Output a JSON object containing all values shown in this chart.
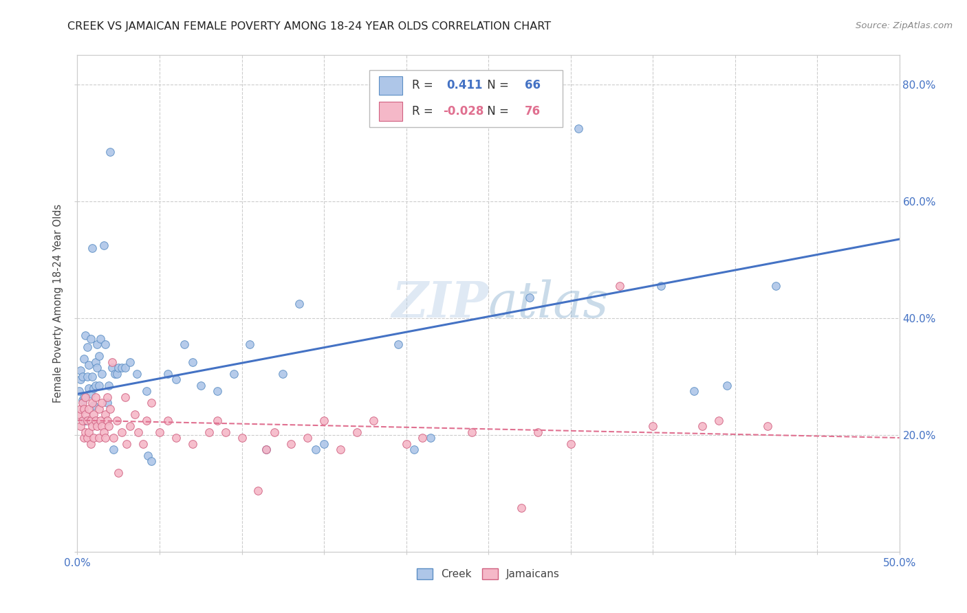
{
  "title": "CREEK VS JAMAICAN FEMALE POVERTY AMONG 18-24 YEAR OLDS CORRELATION CHART",
  "source": "Source: ZipAtlas.com",
  "ylabel": "Female Poverty Among 18-24 Year Olds",
  "xlim": [
    0.0,
    0.5
  ],
  "ylim": [
    0.0,
    0.85
  ],
  "creek_color": "#aec6e8",
  "creek_edge_color": "#5b8ec4",
  "jamaican_color": "#f5b8c8",
  "jamaican_edge_color": "#d06080",
  "creek_line_color": "#4472c4",
  "jamaican_line_color": "#e07090",
  "creek_R": 0.411,
  "creek_N": 66,
  "jamaican_R": -0.028,
  "jamaican_N": 76,
  "background_color": "#ffffff",
  "grid_color": "#cccccc",
  "tick_color": "#4472c4",
  "creek_scatter": [
    [
      0.001,
      0.275
    ],
    [
      0.002,
      0.295
    ],
    [
      0.002,
      0.31
    ],
    [
      0.003,
      0.26
    ],
    [
      0.003,
      0.3
    ],
    [
      0.004,
      0.265
    ],
    [
      0.004,
      0.33
    ],
    [
      0.005,
      0.225
    ],
    [
      0.005,
      0.37
    ],
    [
      0.006,
      0.35
    ],
    [
      0.006,
      0.3
    ],
    [
      0.007,
      0.28
    ],
    [
      0.007,
      0.32
    ],
    [
      0.008,
      0.27
    ],
    [
      0.008,
      0.365
    ],
    [
      0.009,
      0.52
    ],
    [
      0.009,
      0.3
    ],
    [
      0.01,
      0.25
    ],
    [
      0.01,
      0.28
    ],
    [
      0.011,
      0.325
    ],
    [
      0.011,
      0.285
    ],
    [
      0.012,
      0.355
    ],
    [
      0.012,
      0.315
    ],
    [
      0.013,
      0.335
    ],
    [
      0.013,
      0.285
    ],
    [
      0.014,
      0.365
    ],
    [
      0.015,
      0.305
    ],
    [
      0.016,
      0.525
    ],
    [
      0.017,
      0.355
    ],
    [
      0.018,
      0.255
    ],
    [
      0.019,
      0.285
    ],
    [
      0.02,
      0.685
    ],
    [
      0.021,
      0.315
    ],
    [
      0.022,
      0.175
    ],
    [
      0.023,
      0.305
    ],
    [
      0.024,
      0.305
    ],
    [
      0.025,
      0.315
    ],
    [
      0.027,
      0.315
    ],
    [
      0.029,
      0.315
    ],
    [
      0.032,
      0.325
    ],
    [
      0.036,
      0.305
    ],
    [
      0.042,
      0.275
    ],
    [
      0.043,
      0.165
    ],
    [
      0.045,
      0.155
    ],
    [
      0.055,
      0.305
    ],
    [
      0.06,
      0.295
    ],
    [
      0.065,
      0.355
    ],
    [
      0.07,
      0.325
    ],
    [
      0.075,
      0.285
    ],
    [
      0.085,
      0.275
    ],
    [
      0.095,
      0.305
    ],
    [
      0.105,
      0.355
    ],
    [
      0.115,
      0.175
    ],
    [
      0.125,
      0.305
    ],
    [
      0.135,
      0.425
    ],
    [
      0.145,
      0.175
    ],
    [
      0.15,
      0.185
    ],
    [
      0.195,
      0.355
    ],
    [
      0.205,
      0.175
    ],
    [
      0.215,
      0.195
    ],
    [
      0.275,
      0.435
    ],
    [
      0.305,
      0.725
    ],
    [
      0.355,
      0.455
    ],
    [
      0.375,
      0.275
    ],
    [
      0.395,
      0.285
    ],
    [
      0.425,
      0.455
    ]
  ],
  "jamaican_scatter": [
    [
      0.001,
      0.235
    ],
    [
      0.002,
      0.245
    ],
    [
      0.002,
      0.215
    ],
    [
      0.003,
      0.255
    ],
    [
      0.003,
      0.225
    ],
    [
      0.004,
      0.245
    ],
    [
      0.004,
      0.195
    ],
    [
      0.005,
      0.235
    ],
    [
      0.005,
      0.205
    ],
    [
      0.005,
      0.265
    ],
    [
      0.006,
      0.225
    ],
    [
      0.006,
      0.195
    ],
    [
      0.007,
      0.245
    ],
    [
      0.007,
      0.205
    ],
    [
      0.008,
      0.225
    ],
    [
      0.008,
      0.185
    ],
    [
      0.009,
      0.255
    ],
    [
      0.009,
      0.215
    ],
    [
      0.01,
      0.235
    ],
    [
      0.01,
      0.195
    ],
    [
      0.011,
      0.265
    ],
    [
      0.011,
      0.225
    ],
    [
      0.012,
      0.215
    ],
    [
      0.013,
      0.245
    ],
    [
      0.013,
      0.195
    ],
    [
      0.014,
      0.225
    ],
    [
      0.015,
      0.255
    ],
    [
      0.015,
      0.215
    ],
    [
      0.016,
      0.205
    ],
    [
      0.017,
      0.235
    ],
    [
      0.017,
      0.195
    ],
    [
      0.018,
      0.265
    ],
    [
      0.018,
      0.225
    ],
    [
      0.019,
      0.215
    ],
    [
      0.02,
      0.245
    ],
    [
      0.021,
      0.325
    ],
    [
      0.022,
      0.195
    ],
    [
      0.024,
      0.225
    ],
    [
      0.025,
      0.135
    ],
    [
      0.027,
      0.205
    ],
    [
      0.029,
      0.265
    ],
    [
      0.03,
      0.185
    ],
    [
      0.032,
      0.215
    ],
    [
      0.035,
      0.235
    ],
    [
      0.037,
      0.205
    ],
    [
      0.04,
      0.185
    ],
    [
      0.042,
      0.225
    ],
    [
      0.045,
      0.255
    ],
    [
      0.05,
      0.205
    ],
    [
      0.055,
      0.225
    ],
    [
      0.06,
      0.195
    ],
    [
      0.07,
      0.185
    ],
    [
      0.08,
      0.205
    ],
    [
      0.085,
      0.225
    ],
    [
      0.09,
      0.205
    ],
    [
      0.1,
      0.195
    ],
    [
      0.11,
      0.105
    ],
    [
      0.115,
      0.175
    ],
    [
      0.12,
      0.205
    ],
    [
      0.13,
      0.185
    ],
    [
      0.14,
      0.195
    ],
    [
      0.15,
      0.225
    ],
    [
      0.16,
      0.175
    ],
    [
      0.17,
      0.205
    ],
    [
      0.18,
      0.225
    ],
    [
      0.2,
      0.185
    ],
    [
      0.21,
      0.195
    ],
    [
      0.24,
      0.205
    ],
    [
      0.27,
      0.075
    ],
    [
      0.28,
      0.205
    ],
    [
      0.3,
      0.185
    ],
    [
      0.33,
      0.455
    ],
    [
      0.35,
      0.215
    ],
    [
      0.38,
      0.215
    ],
    [
      0.39,
      0.225
    ],
    [
      0.42,
      0.215
    ]
  ]
}
